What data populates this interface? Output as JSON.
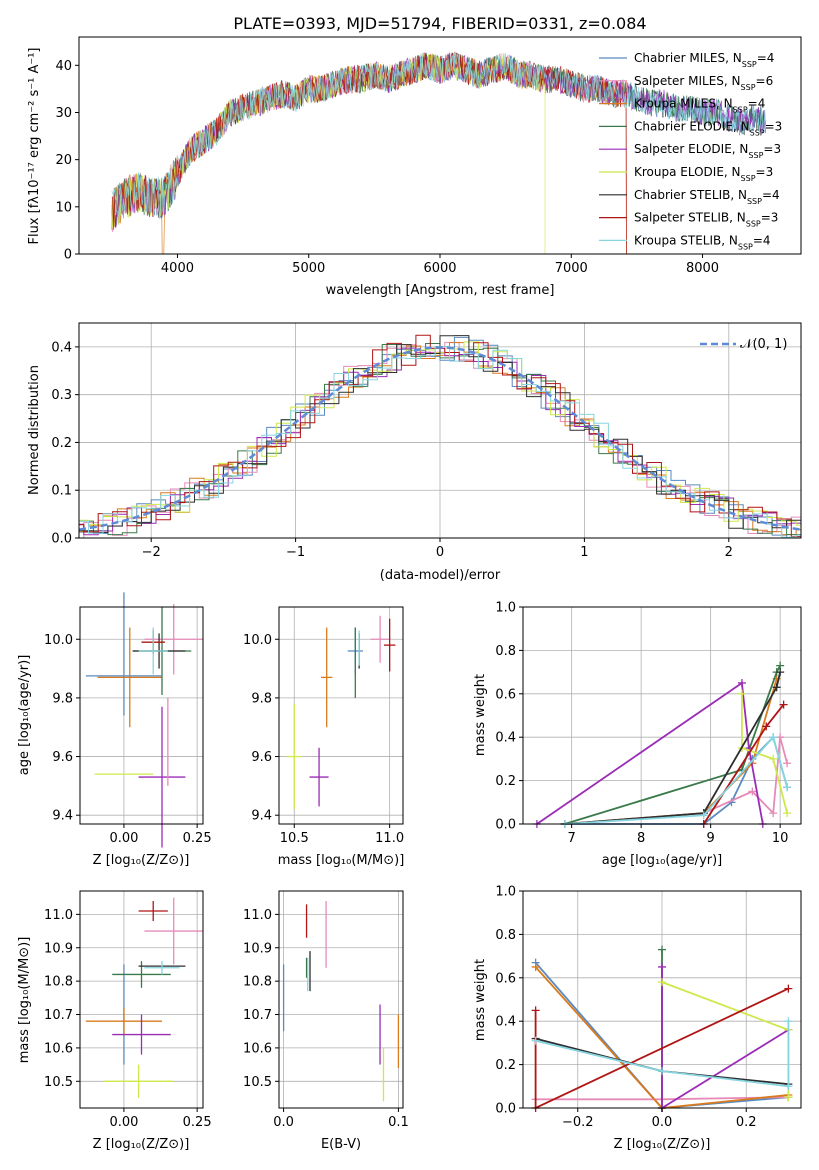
{
  "title": "PLATE=0393, MJD=51794, FIBERID=0331, z=0.084",
  "series_colors": [
    "#5a8ac0",
    "#e68ab8",
    "#d97b1c",
    "#3a7a4a",
    "#9b2cb6",
    "#cfe84a",
    "#2e2e2e",
    "#b01515",
    "#86d5e0"
  ],
  "chart_data": [
    {
      "type": "line",
      "panel": "spectrum",
      "xlabel": "wavelength [Angstrom, rest frame]",
      "ylabel": "Flux [fλ10⁻¹⁷ erg cm⁻² s⁻¹ A⁻¹]",
      "xlim": [
        3250,
        8750
      ],
      "ylim": [
        0,
        46
      ],
      "xticks": [
        "4000",
        "5000",
        "6000",
        "7000",
        "8000"
      ],
      "yticks": [
        "0",
        "10",
        "20",
        "30",
        "40"
      ],
      "grid": false,
      "legend_position": "right",
      "spectrum_profile": {
        "x": [
          3500,
          3600,
          3700,
          3800,
          3900,
          4000,
          4100,
          4200,
          4300,
          4400,
          4500,
          4600,
          4700,
          4800,
          4900,
          5000,
          5100,
          5200,
          5300,
          5400,
          5500,
          5600,
          5700,
          5800,
          5900,
          6000,
          6100,
          6200,
          6300,
          6400,
          6500,
          6600,
          6700,
          6800,
          6900,
          7000,
          7100,
          7200,
          7300,
          7400,
          7500,
          7600,
          7700,
          7800,
          7900,
          8000,
          8100,
          8200,
          8300,
          8400,
          8500
        ],
        "y": [
          9,
          12,
          13,
          12,
          12,
          17,
          22,
          24,
          26,
          30,
          31,
          32,
          33,
          34,
          33,
          35,
          35,
          36,
          37,
          37,
          38,
          37,
          38,
          39,
          40,
          39,
          40,
          39,
          38,
          39,
          40,
          38,
          38,
          37,
          37,
          36,
          35,
          35,
          34,
          34,
          33,
          32,
          32,
          31,
          31,
          30,
          30,
          29,
          28,
          29,
          28
        ]
      },
      "series": [
        {
          "name": "Chabrier MILES, N_SSP=4"
        },
        {
          "name": "Salpeter MILES, N_SSP=6"
        },
        {
          "name": "Kroupa MILES, N_SSP=4"
        },
        {
          "name": "Chabrier ELODIE, N_SSP=3"
        },
        {
          "name": "Salpeter ELODIE, N_SSP=3"
        },
        {
          "name": "Kroupa ELODIE, N_SSP=3"
        },
        {
          "name": "Chabrier STELIB, N_SSP=4"
        },
        {
          "name": "Salpeter STELIB, N_SSP=3"
        },
        {
          "name": "Kroupa STELIB, N_SSP=4"
        }
      ]
    },
    {
      "type": "line",
      "panel": "residual-histogram",
      "xlabel": "(data-model)/error",
      "ylabel": "Normed distribution",
      "xlim": [
        -2.5,
        2.5
      ],
      "ylim": [
        0,
        0.45
      ],
      "xticks": [
        "−2",
        "−1",
        "0",
        "1",
        "2"
      ],
      "yticks": [
        "0.0",
        "0.1",
        "0.2",
        "0.3",
        "0.4"
      ],
      "grid": true,
      "legend_position": "top-right",
      "reference_curve": {
        "name": "𝒩(0, 1)",
        "mean": 0,
        "sigma": 1
      },
      "bin_width": 0.1
    },
    {
      "type": "scatter",
      "panel": "Z-vs-age",
      "xlabel": "Z [log₁₀(Z/Z⊙)]",
      "ylabel": "age  [log₁₀(age/yr)]",
      "xlim": [
        -0.15,
        0.27
      ],
      "ylim": [
        9.37,
        10.11
      ],
      "xticks": [
        "0.00",
        "0.25"
      ],
      "yticks": [
        "9.4",
        "9.6",
        "9.8",
        "10.0"
      ],
      "grid": true,
      "points": [
        {
          "x": 0.0,
          "y": 9.95,
          "xerr": 0.0,
          "yerr": 0.21
        },
        {
          "x": 0.17,
          "y": 10.0,
          "xerr": 0.1,
          "yerr": 0.12
        },
        {
          "x": 0.02,
          "y": 9.87,
          "xerr": 0.11,
          "yerr": 0.17
        },
        {
          "x": 0.13,
          "y": 9.96,
          "xerr": 0.1,
          "yerr": 0.15
        },
        {
          "x": 0.13,
          "y": 9.53,
          "xerr": 0.08,
          "yerr": 0.24
        },
        {
          "x": 0.0,
          "y": 9.54,
          "xerr": 0.1,
          "yerr": 0.0
        },
        {
          "x": 0.12,
          "y": 9.96,
          "xerr": 0.09,
          "yerr": 0.06
        },
        {
          "x": 0.1,
          "y": 9.99,
          "xerr": 0.04,
          "yerr": 0.04
        },
        {
          "x": 0.1,
          "y": 9.96,
          "xerr": 0.05,
          "yerr": 0.08
        },
        {
          "x": 0.0,
          "y": 9.875,
          "xerr": 0.13,
          "yerr": 0.0
        },
        {
          "x": 0.15,
          "y": 9.65,
          "xerr": 0.0,
          "yerr": 0.15
        }
      ]
    },
    {
      "type": "scatter",
      "panel": "mass-vs-age",
      "xlabel": "mass [log₁₀(M/M⊙)]",
      "ylabel": "",
      "xlim": [
        10.42,
        11.07
      ],
      "ylim": [
        9.37,
        10.11
      ],
      "xticks": [
        "10.5",
        "11.0"
      ],
      "yticks": [
        "9.4",
        "9.6",
        "9.8",
        "10.0"
      ],
      "grid": true,
      "points": [
        {
          "x": 10.82,
          "y": 9.96,
          "xerr": 0.04,
          "yerr": 0.08
        },
        {
          "x": 10.95,
          "y": 10.0,
          "xerr": 0.05,
          "yerr": 0.08
        },
        {
          "x": 10.67,
          "y": 9.87,
          "xerr": 0.03,
          "yerr": 0.17
        },
        {
          "x": 10.82,
          "y": 9.92,
          "xerr": 0.0,
          "yerr": 0.12
        },
        {
          "x": 10.63,
          "y": 9.53,
          "xerr": 0.05,
          "yerr": 0.1
        },
        {
          "x": 10.5,
          "y": 9.6,
          "xerr": 0.04,
          "yerr": 0.18
        },
        {
          "x": 10.84,
          "y": 9.96,
          "xerr": 0.0,
          "yerr": 0.06
        },
        {
          "x": 11.0,
          "y": 9.98,
          "xerr": 0.03,
          "yerr": 0.09
        },
        {
          "x": 10.84,
          "y": 9.97,
          "xerr": 0.0,
          "yerr": 0.06
        }
      ]
    },
    {
      "type": "line",
      "panel": "age-vs-mass-weight",
      "xlabel": "age  [log₁₀(age/yr)]",
      "ylabel": "mass weight",
      "xlim": [
        6.3,
        10.3
      ],
      "ylim": [
        0,
        1.0
      ],
      "xticks": [
        "7",
        "8",
        "9",
        "10"
      ],
      "yticks": [
        "0.0",
        "0.2",
        "0.4",
        "0.6",
        "0.8",
        "1.0"
      ],
      "grid": true,
      "series": [
        {
          "x": [
            6.9,
            8.9,
            9.3,
            9.6,
            9.9,
            10.1
          ],
          "y": [
            0.0,
            0.0,
            0.1,
            0.3,
            0.4,
            0.17
          ]
        },
        {
          "x": [
            6.9,
            8.9,
            9.6,
            9.9,
            10.0,
            10.1
          ],
          "y": [
            0.0,
            0.05,
            0.15,
            0.05,
            0.4,
            0.28
          ]
        },
        {
          "x": [
            6.9,
            8.9,
            9.6,
            9.95
          ],
          "y": [
            0.0,
            0.05,
            0.28,
            0.67
          ]
        },
        {
          "x": [
            6.9,
            9.45,
            9.95,
            10.0
          ],
          "y": [
            0.0,
            0.25,
            0.7,
            0.73
          ]
        },
        {
          "x": [
            6.5,
            9.45,
            9.55,
            9.75
          ],
          "y": [
            0.0,
            0.65,
            0.35,
            0.0
          ]
        },
        {
          "x": [
            9.45,
            9.45,
            9.9,
            10.1
          ],
          "y": [
            0.6,
            0.35,
            0.3,
            0.05
          ]
        },
        {
          "x": [
            6.9,
            8.9,
            9.95,
            10.0
          ],
          "y": [
            0.0,
            0.05,
            0.63,
            0.7
          ]
        },
        {
          "x": [
            8.9,
            9.8,
            10.05
          ],
          "y": [
            0.0,
            0.45,
            0.55
          ]
        },
        {
          "x": [
            6.9,
            8.9,
            9.9,
            10.1
          ],
          "y": [
            0.0,
            0.04,
            0.4,
            0.17
          ]
        }
      ]
    },
    {
      "type": "scatter",
      "panel": "Z-vs-mass",
      "xlabel": "Z [log₁₀(Z/Z⊙)]",
      "ylabel": "mass [log₁₀(M/M⊙)]",
      "xlim": [
        -0.15,
        0.27
      ],
      "ylim": [
        10.42,
        11.07
      ],
      "xticks": [
        "0.00",
        "0.25"
      ],
      "yticks": [
        "10.5",
        "10.6",
        "10.7",
        "10.8",
        "10.9",
        "11.0"
      ],
      "grid": true,
      "points": [
        {
          "x": 0.0,
          "y": 10.7,
          "xerr": 0.0,
          "yerr": 0.15
        },
        {
          "x": 0.17,
          "y": 10.95,
          "xerr": 0.1,
          "yerr": 0.1
        },
        {
          "x": 0.0,
          "y": 10.68,
          "xerr": 0.13,
          "yerr": 0.04
        },
        {
          "x": 0.06,
          "y": 10.82,
          "xerr": 0.1,
          "yerr": 0.04
        },
        {
          "x": 0.06,
          "y": 10.64,
          "xerr": 0.1,
          "yerr": 0.06
        },
        {
          "x": 0.05,
          "y": 10.5,
          "xerr": 0.12,
          "yerr": 0.05
        },
        {
          "x": 0.13,
          "y": 10.845,
          "xerr": 0.08,
          "yerr": 0.0
        },
        {
          "x": 0.1,
          "y": 11.01,
          "xerr": 0.05,
          "yerr": 0.03
        },
        {
          "x": 0.13,
          "y": 10.84,
          "xerr": 0.06,
          "yerr": 0.02
        }
      ]
    },
    {
      "type": "scatter",
      "panel": "EBV-vs-mass",
      "xlabel": "E(B-V)",
      "ylabel": "",
      "xlim": [
        -0.004,
        0.104
      ],
      "ylim": [
        10.42,
        11.07
      ],
      "xticks": [
        "0.0",
        "0.1"
      ],
      "yticks": [
        "10.5",
        "10.6",
        "10.7",
        "10.8",
        "10.9",
        "11.0"
      ],
      "grid": true,
      "points": [
        {
          "x": 0.0,
          "y": 10.75,
          "xerr": 0.0,
          "yerr": 0.1
        },
        {
          "x": 0.037,
          "y": 10.94,
          "xerr": 0.0,
          "yerr": 0.1
        },
        {
          "x": 0.1,
          "y": 10.62,
          "xerr": 0.0,
          "yerr": 0.08
        },
        {
          "x": 0.02,
          "y": 10.84,
          "xerr": 0.0,
          "yerr": 0.03
        },
        {
          "x": 0.084,
          "y": 10.64,
          "xerr": 0.0,
          "yerr": 0.09
        },
        {
          "x": 0.087,
          "y": 10.52,
          "xerr": 0.0,
          "yerr": 0.08
        },
        {
          "x": 0.023,
          "y": 10.83,
          "xerr": 0.0,
          "yerr": 0.06
        },
        {
          "x": 0.02,
          "y": 10.98,
          "xerr": 0.0,
          "yerr": 0.05
        },
        {
          "x": 0.021,
          "y": 10.82,
          "xerr": 0.0,
          "yerr": 0.05
        }
      ]
    },
    {
      "type": "line",
      "panel": "Z-vs-mass-weight",
      "xlabel": "Z [log₁₀(Z/Z⊙)]",
      "ylabel": "mass weight",
      "xlim": [
        -0.33,
        0.33
      ],
      "ylim": [
        0,
        1.0
      ],
      "xticks": [
        "−0.2",
        "0.0",
        "0.2"
      ],
      "yticks": [
        "0.0",
        "0.2",
        "0.4",
        "0.6",
        "0.8",
        "1.0"
      ],
      "grid": true,
      "series": [
        {
          "x": [
            -0.3,
            0.0,
            0.3
          ],
          "y": [
            0.67,
            0.0,
            0.05
          ]
        },
        {
          "x": [
            -0.3,
            0.0,
            0.3
          ],
          "y": [
            0.04,
            0.04,
            0.05
          ]
        },
        {
          "x": [
            -0.3,
            0.0,
            0.3
          ],
          "y": [
            0.65,
            0.0,
            0.06
          ]
        },
        {
          "x": [
            0.0,
            0.0
          ],
          "y": [
            0.0,
            0.73
          ]
        },
        {
          "x": [
            0.0,
            0.0,
            0.3
          ],
          "y": [
            0.65,
            0.0,
            0.36
          ]
        },
        {
          "x": [
            0.0,
            0.3,
            0.3
          ],
          "y": [
            0.58,
            0.36,
            0.05
          ]
        },
        {
          "x": [
            -0.3,
            0.0,
            0.3
          ],
          "y": [
            0.32,
            0.17,
            0.11
          ]
        },
        {
          "x": [
            -0.3,
            -0.3,
            0.3
          ],
          "y": [
            0.45,
            0.0,
            0.55
          ]
        },
        {
          "x": [
            -0.3,
            0.0,
            0.3,
            0.3
          ],
          "y": [
            0.31,
            0.17,
            0.1,
            0.4
          ]
        }
      ]
    }
  ]
}
